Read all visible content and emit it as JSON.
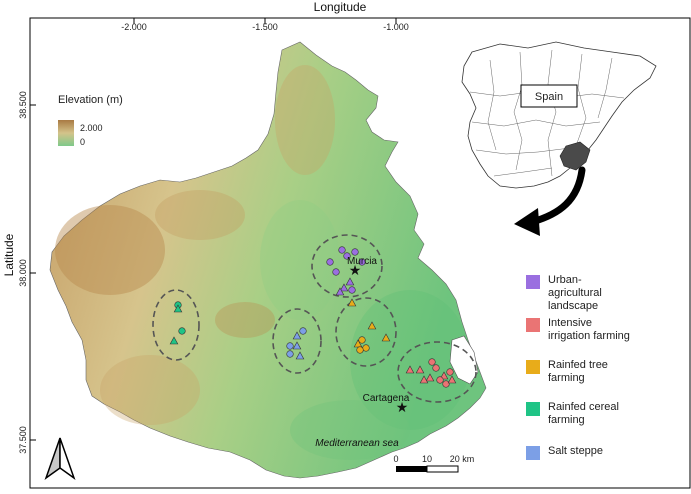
{
  "axes": {
    "x_title": "Longitude",
    "y_title": "Latitude",
    "x_ticks": [
      "-2.000",
      "-1.500",
      "-1.000"
    ],
    "y_ticks": [
      "38.500",
      "38.000",
      "37.500"
    ]
  },
  "elevation_legend": {
    "title": "Elevation (m)",
    "high": "2.000",
    "low": "0",
    "high_color": "#a97a43",
    "low_color": "#7fc98a"
  },
  "inset": {
    "label": "Spain",
    "highlight_color": "#4a4a4a"
  },
  "cities": [
    {
      "name": "Murcia"
    },
    {
      "name": "Cartagena"
    }
  ],
  "sea_label": "Mediterranean sea",
  "scale_bar": {
    "ticks": [
      "0",
      "10",
      "20 km"
    ]
  },
  "legend": [
    {
      "label_lines": [
        "Urban-",
        "agricultural",
        "landscape"
      ],
      "color": "#9a6fe0"
    },
    {
      "label_lines": [
        "Intensive",
        "irrigation farming"
      ],
      "color": "#ea7474"
    },
    {
      "label_lines": [
        "Rainfed tree",
        "farming"
      ],
      "color": "#e8ac1a"
    },
    {
      "label_lines": [
        "Rainfed cereal",
        "farming"
      ],
      "color": "#1fc486"
    },
    {
      "label_lines": [
        "Salt steppe"
      ],
      "color": "#7c9fe6"
    }
  ],
  "north_arrow": {
    "icon": "north-arrow-icon"
  }
}
